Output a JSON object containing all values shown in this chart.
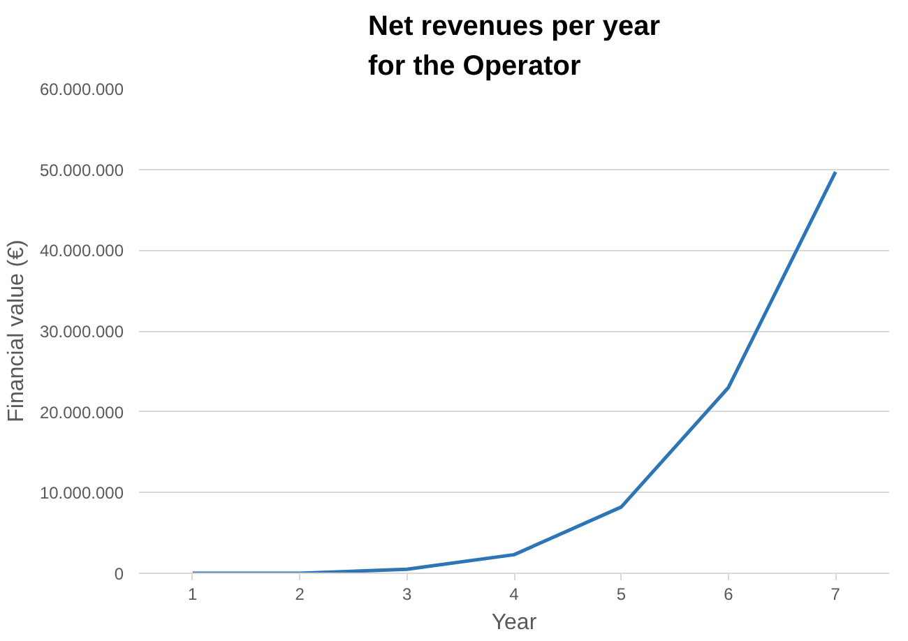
{
  "chart_data": {
    "type": "line",
    "title": "Net revenues per year\nfor the Operator",
    "xlabel": "Year",
    "ylabel": "Financial value (€)",
    "categories": [
      "1",
      "2",
      "3",
      "4",
      "5",
      "6",
      "7"
    ],
    "series": [
      {
        "color": "#2e75b6",
        "values": [
          0,
          0,
          500000,
          2300000,
          8200000,
          23000000,
          49700000
        ]
      }
    ],
    "ylim": [
      0,
      60000000
    ],
    "yticks": [
      {
        "value": 0,
        "label": "0"
      },
      {
        "value": 10000000,
        "label": "10.000.000"
      },
      {
        "value": 20000000,
        "label": "20.000.000"
      },
      {
        "value": 30000000,
        "label": "30.000.000"
      },
      {
        "value": 40000000,
        "label": "40.000.000"
      },
      {
        "value": 50000000,
        "label": "50.000.000"
      },
      {
        "value": 60000000,
        "label": "60.000.000"
      }
    ],
    "grid": "y"
  }
}
